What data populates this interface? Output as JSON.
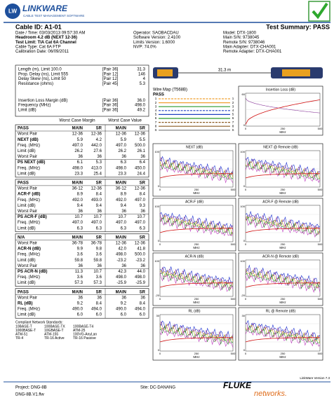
{
  "header": {
    "logo_initials": "LW",
    "product": "LinkWare",
    "tagline": "CABLE TEST MANAGEMENT SOFTWARE"
  },
  "info": {
    "cable_id": "Cable ID: A1-01",
    "summary": "Test Summary: PASS",
    "left": [
      "Date / Time: 03/03/2013 09:57:30 AM",
      "Headroom 4.2 dB (NEXT 12-36)",
      "Test Limit: TIA Cat 6A Channel",
      "Cable Type: Cat 6A FTP",
      "Calibration Date: 06/09/2011"
    ],
    "middle": [
      "Operator: SAOBACDAU",
      "Software Version: 2.4100",
      "Limits Version: 1.6000",
      "NVP: 74.0%"
    ],
    "right": [
      "Model: DTX-1800",
      "Main S/N: 9738045",
      "Remote S/N: 9738046",
      "Main Adapter: DTX-CHA001",
      "Remote Adapter: DTX-CHA001"
    ]
  },
  "summary": [
    [
      "Length (m), Limit 100.0",
      "[Pair 36]",
      "31.3"
    ],
    [
      "Prop. Delay (ns), Limit 555",
      "[Pair 12]",
      "146"
    ],
    [
      "Delay Skew (ns), Limit 50",
      "[Pair 12]",
      "4"
    ],
    [
      "Resistance (ohms)",
      "[Pair 45]",
      "5.3"
    ],
    [
      "Insertion Loss Margin (dB)",
      "[Pair 36]",
      "36.0"
    ],
    [
      "Frequency (MHz)",
      "[Pair 36]",
      "498.0"
    ],
    [
      "Limit (dB)",
      "[Pair 36]",
      "49.2"
    ]
  ],
  "worst_case_headers": [
    "Worst Case Margin",
    "Worst Case Value"
  ],
  "blocks": [
    [
      [
        "PASS",
        "MAIN",
        "SR",
        "MAIN",
        "SR"
      ],
      [
        "Worst Pair",
        "12-36",
        "12-36",
        "12-36",
        "12-36"
      ],
      [
        "NEXT (dB)",
        "5.9",
        "4.2",
        "5.9",
        "5.5"
      ],
      [
        "Freq. (MHz)",
        "497.0",
        "442.0",
        "497.0",
        "500.0"
      ],
      [
        "Limit (dB)",
        "26.2",
        "27.6",
        "26.2",
        "26.1"
      ],
      [
        "Worst Pair",
        "36",
        "36",
        "36",
        "36"
      ],
      [
        "PS NEXT (dB)",
        "6.1",
        "5.3",
        "6.3",
        "6.4"
      ],
      [
        "Freq. (MHz)",
        "498.0",
        "413.0",
        "498.0",
        "450.0"
      ],
      [
        "Limit (dB)",
        "23.3",
        "25.4",
        "23.3",
        "24.4"
      ]
    ],
    [
      [
        "PASS",
        "MAIN",
        "SR",
        "MAIN",
        "SR"
      ],
      [
        "Worst Pair",
        "36-12",
        "12-36",
        "36-12",
        "12-36"
      ],
      [
        "ACR-F (dB)",
        "8.9",
        "8.4",
        "8.9",
        "8.4"
      ],
      [
        "Freq. (MHz)",
        "492.0",
        "493.0",
        "492.0",
        "497.0"
      ],
      [
        "Limit (dB)",
        "9.4",
        "9.4",
        "9.4",
        "9.3"
      ],
      [
        "Worst Pair",
        "36",
        "36",
        "36",
        "36"
      ],
      [
        "PS ACR-F (dB)",
        "10.7",
        "10.7",
        "10.7",
        "10.7"
      ],
      [
        "Freq. (MHz)",
        "497.0",
        "497.0",
        "497.0",
        "497.0"
      ],
      [
        "Limit (dB)",
        "6.3",
        "6.3",
        "6.3",
        "6.3"
      ]
    ],
    [
      [
        "N/A",
        "MAIN",
        "SR",
        "MAIN",
        "SR"
      ],
      [
        "Worst Pair",
        "36-78",
        "36-78",
        "12-36",
        "12-36"
      ],
      [
        "ACR-N (dB)",
        "9.9",
        "9.8",
        "42.0",
        "41.8"
      ],
      [
        "Freq. (MHz)",
        "3.6",
        "3.6",
        "498.0",
        "500.0"
      ],
      [
        "Limit (dB)",
        "59.8",
        "59.8",
        "-23.2",
        "-23.2"
      ],
      [
        "Worst Pair",
        "36",
        "36",
        "36",
        "36"
      ],
      [
        "PS ACR-N (dB)",
        "11.3",
        "10.7",
        "42.3",
        "44.0"
      ],
      [
        "Freq. (MHz)",
        "3.6",
        "3.6",
        "498.0",
        "498.0"
      ],
      [
        "Limit (dB)",
        "57.3",
        "57.3",
        "-25.9",
        "-25.9"
      ]
    ],
    [
      [
        "PASS",
        "MAIN",
        "SR",
        "MAIN",
        "SR"
      ],
      [
        "Worst Pair",
        "36",
        "36",
        "36",
        "36"
      ],
      [
        "RL (dB)",
        "9.2",
        "8.4",
        "9.2",
        "8.4"
      ],
      [
        "Freq. (MHz)",
        "490.0",
        "494.0",
        "490.0",
        "494.0"
      ],
      [
        "Limit (dB)",
        "6.0",
        "6.0",
        "6.0",
        "6.0"
      ]
    ]
  ],
  "standards": {
    "title": "Compliant Network Standards:",
    "items": [
      "10BASE-T",
      "100BASE-TX",
      "100BASE-T4",
      "1000BASE-T",
      "10GBASE-T",
      "ATM-25",
      "ATM-51",
      "ATM-155",
      "100VG-AnyLan",
      "TR-4",
      "TR-16 Active",
      "TR-16 Passive"
    ]
  },
  "length_label": "31.3 m",
  "wire_map": {
    "title": "Wire Map (T568B)",
    "status": "PASS",
    "pins": [
      "1",
      "2",
      "3",
      "4",
      "5",
      "6",
      "7",
      "8",
      "S"
    ]
  },
  "graph_x_ticks": [
    "0",
    "250",
    "500"
  ],
  "graph_x_label": "MHz",
  "graphs": [
    {
      "title": "Insertion Loss (dB)",
      "y_labels": [
        "60",
        "0"
      ]
    },
    {
      "title": "NEXT (dB)",
      "y_labels": [
        "100",
        "0"
      ]
    },
    {
      "title": "NEXT @ Remote (dB)",
      "y_labels": [
        "100",
        "0"
      ]
    },
    {
      "title": "ACR-F (dB)",
      "y_labels": [
        "100",
        "0"
      ]
    },
    {
      "title": "ACR-F @ Remote (dB)",
      "y_labels": [
        "100",
        "0"
      ]
    },
    {
      "title": "ACR-N (dB)",
      "y_labels": [
        "100",
        "-20"
      ]
    },
    {
      "title": "ACR-N @ Remote (dB)",
      "y_labels": [
        "100",
        "-20"
      ]
    },
    {
      "title": "RL (dB)",
      "y_labels": [
        "30",
        "0"
      ]
    },
    {
      "title": "RL @ Remote (dB)",
      "y_labels": [
        "30",
        "0"
      ]
    }
  ],
  "footer": {
    "version": "LinkWare Version 7.3",
    "project": "Project: DNG-8B",
    "site": "Site: DC-DANANG",
    "file": "DNG-8B.V1.flw",
    "brand": "FLUKE",
    "brand_sub": "networks."
  }
}
